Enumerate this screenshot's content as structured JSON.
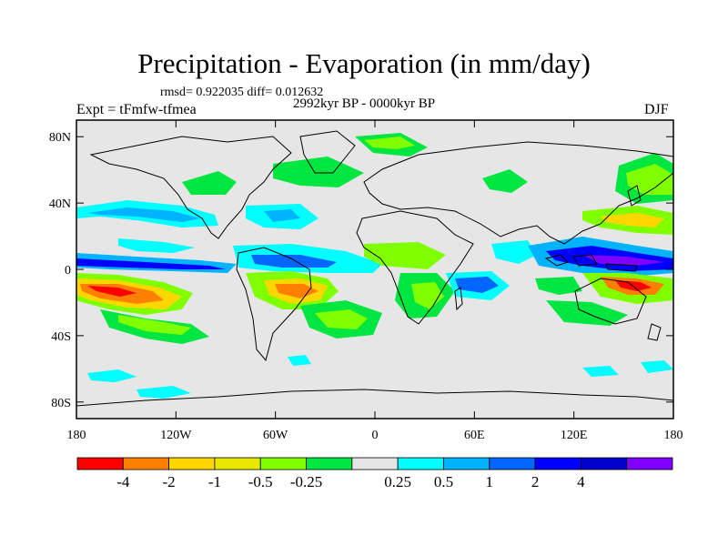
{
  "title": "Precipitation - Evaporation (in mm/day)",
  "stats": "rmsd= 0.922035 diff= 0.012632",
  "experiment": "Expt = tFmfw-tfmea",
  "period": "2992kyr BP - 0000kyr BP",
  "season": "DJF",
  "axes": {
    "x_ticks": [
      {
        "lon": -180,
        "label": "180"
      },
      {
        "lon": -120,
        "label": "120W"
      },
      {
        "lon": -60,
        "label": "60W"
      },
      {
        "lon": 0,
        "label": "0"
      },
      {
        "lon": 60,
        "label": "60E"
      },
      {
        "lon": 120,
        "label": "120E"
      },
      {
        "lon": 180,
        "label": "180"
      }
    ],
    "y_ticks": [
      {
        "lat": 80,
        "label": "80N"
      },
      {
        "lat": 40,
        "label": "40N"
      },
      {
        "lat": 0,
        "label": "0"
      },
      {
        "lat": -40,
        "label": "40S"
      },
      {
        "lat": -80,
        "label": "80S"
      }
    ],
    "lon_range": [
      -180,
      180
    ],
    "lat_range": [
      -90,
      90
    ]
  },
  "colorbar": {
    "colors": [
      "#ff0000",
      "#ff8000",
      "#ffd700",
      "#e8e800",
      "#80ff00",
      "#00e640",
      "#e6e6e6",
      "#00ffff",
      "#00b3ff",
      "#0066ff",
      "#0000ff",
      "#0000cc",
      "#8000ff"
    ],
    "labels": [
      "-4",
      "-2",
      "-1",
      "-0.5",
      "-0.25",
      "0.25",
      "0.5",
      "1",
      "2",
      "4"
    ]
  },
  "colors": {
    "background_no_change": "#e6e6e6",
    "coastline": "#000000"
  }
}
